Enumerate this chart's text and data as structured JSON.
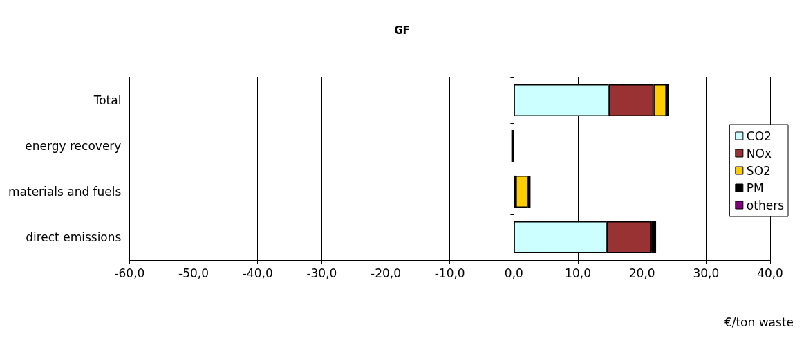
{
  "chart_data": {
    "type": "bar",
    "title": "GF",
    "orientation": "horizontal",
    "stacked": true,
    "categories": [
      "Total",
      "energy recovery",
      "materials and fuels",
      "direct emissions"
    ],
    "series": [
      {
        "name": "CO2",
        "color": "#ccffff",
        "values": [
          14.8,
          null,
          0.3,
          14.5
        ]
      },
      {
        "name": "NOx",
        "color": "#993333",
        "values": [
          7.0,
          null,
          null,
          6.9
        ]
      },
      {
        "name": "SO2",
        "color": "#ffcc00",
        "values": [
          2.0,
          null,
          1.9,
          0.1
        ]
      },
      {
        "name": "PM",
        "color": "#000000",
        "values": [
          0.4,
          -0.4,
          0.4,
          0.7
        ]
      },
      {
        "name": "others",
        "color": "#800080",
        "values": [
          null,
          null,
          null,
          null
        ]
      }
    ],
    "xlabel": "€/ton waste",
    "xlim": [
      -60,
      40
    ],
    "xticks": [
      {
        "value": -60,
        "label": "-60,0"
      },
      {
        "value": -50,
        "label": "-50,0"
      },
      {
        "value": -40,
        "label": "-40,0"
      },
      {
        "value": -30,
        "label": "-30,0"
      },
      {
        "value": -20,
        "label": "-20,0"
      },
      {
        "value": -10,
        "label": "-10,0"
      },
      {
        "value": 0,
        "label": "0,0"
      },
      {
        "value": 10,
        "label": "10,0"
      },
      {
        "value": 20,
        "label": "20,0"
      },
      {
        "value": 30,
        "label": "30,0"
      },
      {
        "value": 40,
        "label": "40,0"
      }
    ],
    "grid": "x",
    "legend": "right"
  }
}
